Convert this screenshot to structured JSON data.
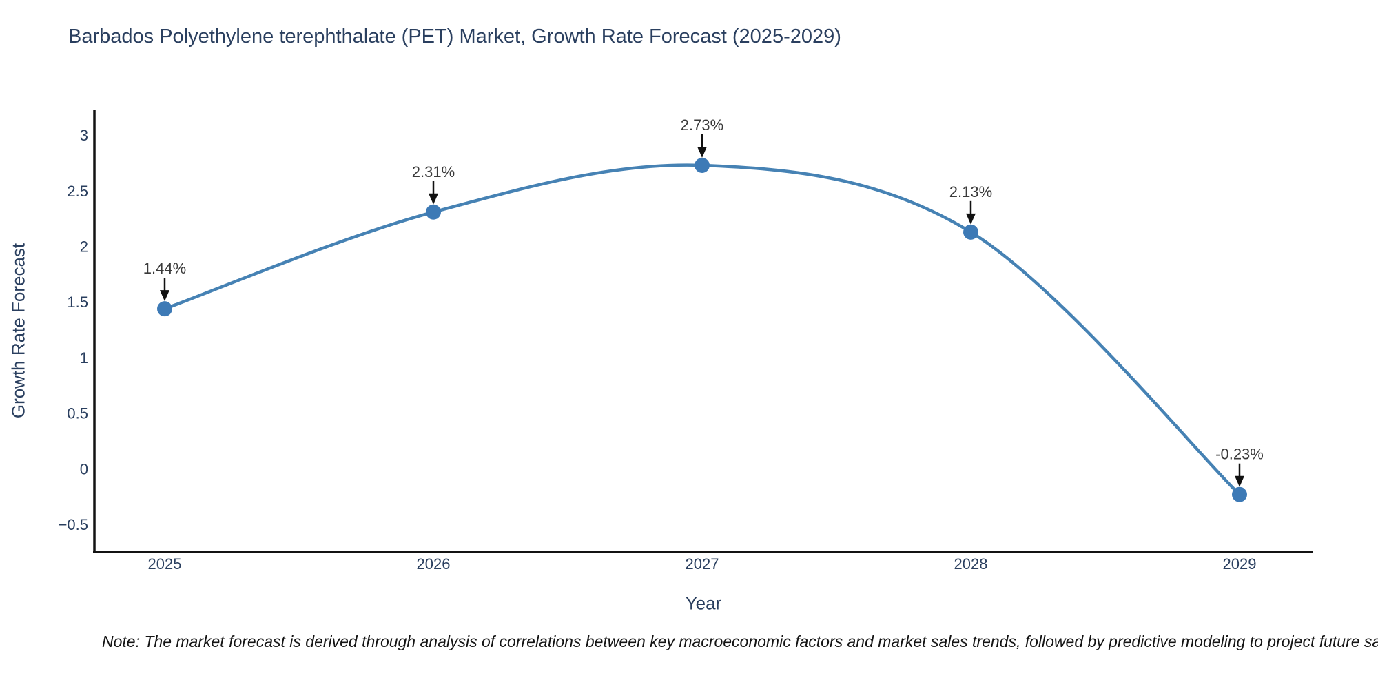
{
  "title": "Barbados Polyethylene terephthalate (PET) Market, Growth Rate Forecast (2025-2029)",
  "note": "Note: The market forecast is derived through analysis of correlations between key macroeconomic factors and market sales trends, followed by predictive modeling to project future sa",
  "chart_data": {
    "type": "line",
    "title": "Barbados Polyethylene terephthalate (PET) Market, Growth Rate Forecast (2025-2029)",
    "xlabel": "Year",
    "ylabel": "Growth Rate Forecast",
    "x": [
      2025,
      2026,
      2027,
      2028,
      2029
    ],
    "categories": [
      "2025",
      "2026",
      "2027",
      "2028",
      "2029"
    ],
    "values": [
      1.44,
      2.31,
      2.73,
      2.13,
      -0.23
    ],
    "point_labels": [
      "1.44%",
      "2.31%",
      "2.73%",
      "2.13%",
      "-0.23%"
    ],
    "yticks": [
      {
        "value": 3,
        "label": "3"
      },
      {
        "value": 2.5,
        "label": "2.5"
      },
      {
        "value": 2,
        "label": "2"
      },
      {
        "value": 1.5,
        "label": "1.5"
      },
      {
        "value": 1,
        "label": "1"
      },
      {
        "value": 0.5,
        "label": "0.5"
      },
      {
        "value": 0,
        "label": "0"
      },
      {
        "value": -0.5,
        "label": "−0.5"
      }
    ],
    "xlim": [
      2024.74,
      2029.27
    ],
    "ylim": [
      -0.75,
      3.22
    ],
    "grid": false,
    "legend": "none",
    "line_shape": "spline",
    "line_color": "#4682b4",
    "marker_color": "#3d7ab6",
    "arrow_color": "#111111",
    "axis_color": "#131313",
    "annotations": "each data point labeled with percent value and a downward black arrow"
  }
}
